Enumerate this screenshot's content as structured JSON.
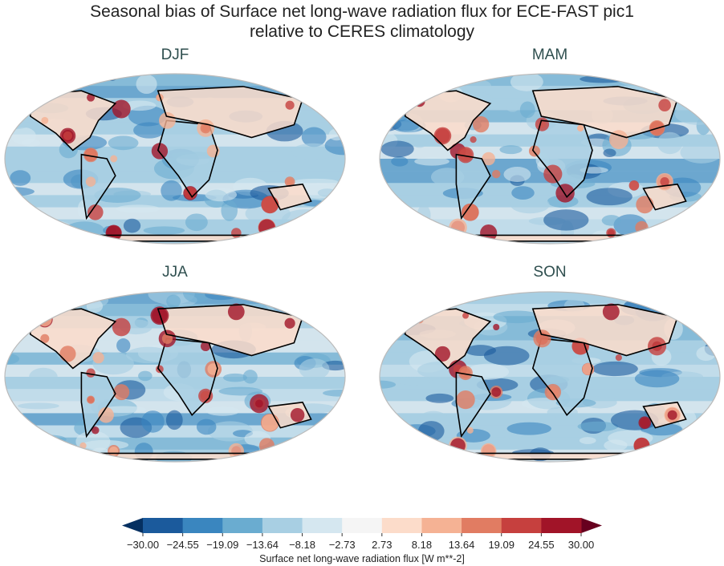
{
  "title_line1": "Seasonal bias of Surface net long-wave radiation flux for ECE-FAST pic1",
  "title_line2": "relative to CERES climatology",
  "panels": [
    {
      "season": "DJF"
    },
    {
      "season": "MAM"
    },
    {
      "season": "JJA"
    },
    {
      "season": "SON"
    }
  ],
  "colorbar": {
    "label": "Surface net long-wave radiation flux [W m**-2]",
    "ticks": [
      "−30.00",
      "−24.55",
      "−19.09",
      "−13.64",
      "−8.18",
      "−2.73",
      "2.73",
      "8.18",
      "13.64",
      "19.09",
      "24.55",
      "30.00"
    ],
    "range": [
      -30,
      30
    ],
    "extend": "both",
    "colors": [
      "#1b5a9c",
      "#3a86bf",
      "#6aacd0",
      "#a8cfe3",
      "#d5e7f0",
      "#f5f5f5",
      "#fcdcca",
      "#f5b294",
      "#e17c62",
      "#c6403e",
      "#a11428"
    ],
    "under_color": "#053061",
    "over_color": "#67001f"
  }
}
